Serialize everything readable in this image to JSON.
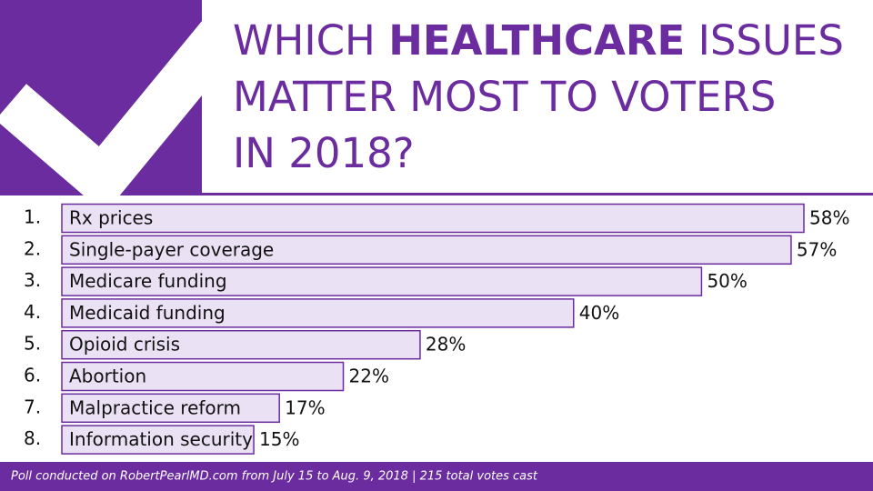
{
  "chart_data": {
    "type": "hbar",
    "title_lines": [
      [
        {
          "text": "WHICH"
        },
        {
          "text": "HEALTHCARE",
          "bold": true
        },
        {
          "text": "ISSUES"
        }
      ],
      [
        {
          "text": "MATTER MOST TO VOTERS"
        }
      ],
      [
        {
          "text": "IN 2018?"
        }
      ]
    ],
    "ranks": [
      "1.",
      "2.",
      "3.",
      "4.",
      "5.",
      "6.",
      "7.",
      "8."
    ],
    "categories": [
      "Rx prices",
      "Single-payer coverage",
      "Medicare funding",
      "Medicaid funding",
      "Opioid crisis",
      "Abortion",
      "Malpractice reform",
      "Information security"
    ],
    "values": [
      58,
      57,
      50,
      40,
      28,
      22,
      17,
      15
    ],
    "value_labels": [
      "58%",
      "57%",
      "50%",
      "40%",
      "28%",
      "22%",
      "17%",
      "15%"
    ],
    "color": "#ebe1f5",
    "footnote": "Poll conducted on RobertPearlMD.com from July 15 to Aug. 9, 2018 | 215 total votes cast"
  }
}
